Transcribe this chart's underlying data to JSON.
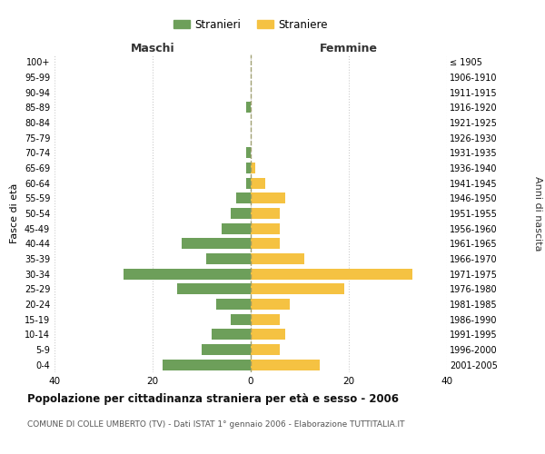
{
  "age_groups": [
    "100+",
    "95-99",
    "90-94",
    "85-89",
    "80-84",
    "75-79",
    "70-74",
    "65-69",
    "60-64",
    "55-59",
    "50-54",
    "45-49",
    "40-44",
    "35-39",
    "30-34",
    "25-29",
    "20-24",
    "15-19",
    "10-14",
    "5-9",
    "0-4"
  ],
  "birth_years": [
    "≤ 1905",
    "1906-1910",
    "1911-1915",
    "1916-1920",
    "1921-1925",
    "1926-1930",
    "1931-1935",
    "1936-1940",
    "1941-1945",
    "1946-1950",
    "1951-1955",
    "1956-1960",
    "1961-1965",
    "1966-1970",
    "1971-1975",
    "1976-1980",
    "1981-1985",
    "1986-1990",
    "1991-1995",
    "1996-2000",
    "2001-2005"
  ],
  "maschi": [
    0,
    0,
    0,
    1,
    0,
    0,
    1,
    1,
    1,
    3,
    4,
    6,
    14,
    9,
    26,
    15,
    7,
    4,
    8,
    10,
    18
  ],
  "femmine": [
    0,
    0,
    0,
    0,
    0,
    0,
    0,
    1,
    3,
    7,
    6,
    6,
    6,
    11,
    33,
    19,
    8,
    6,
    7,
    6,
    14
  ],
  "maschi_color": "#6d9f5a",
  "femmine_color": "#f5c242",
  "title": "Popolazione per cittadinanza straniera per età e sesso - 2006",
  "subtitle": "COMUNE DI COLLE UMBERTO (TV) - Dati ISTAT 1° gennaio 2006 - Elaborazione TUTTITALIA.IT",
  "xlabel_left": "Maschi",
  "xlabel_right": "Femmine",
  "ylabel_left": "Fasce di età",
  "ylabel_right": "Anni di nascita",
  "legend_stranieri": "Stranieri",
  "legend_straniere": "Straniere",
  "xlim": 40,
  "background_color": "#ffffff",
  "grid_color": "#cccccc"
}
